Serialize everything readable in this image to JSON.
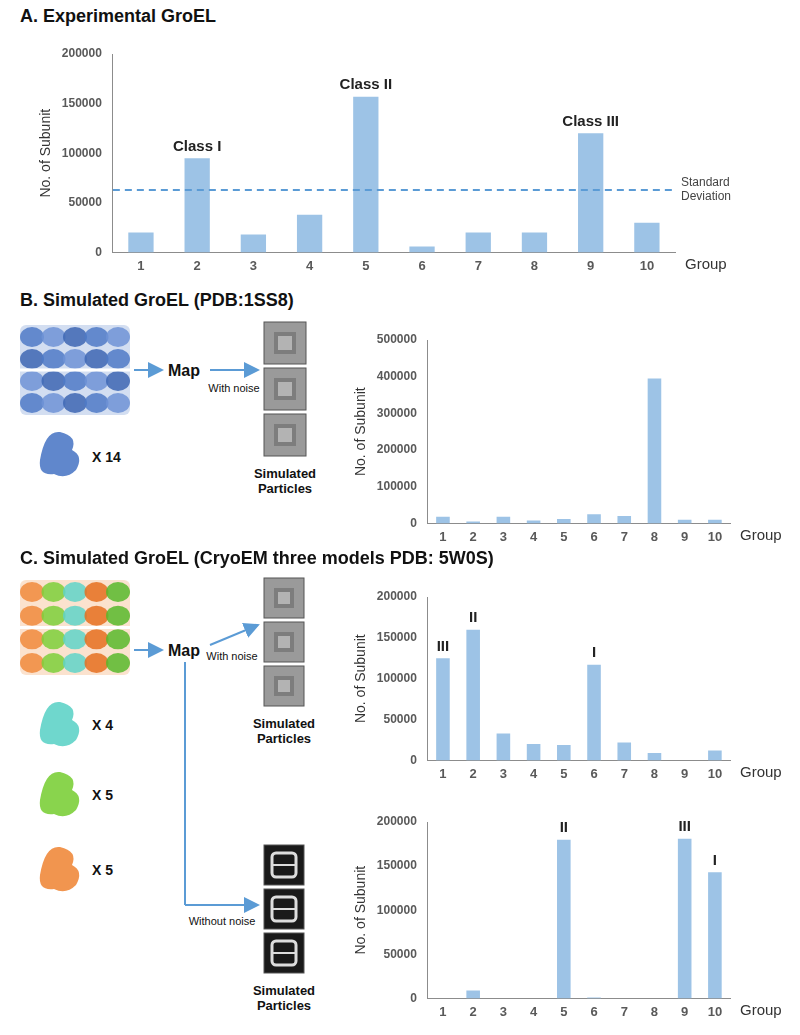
{
  "chart_data": [
    {
      "type": "bar",
      "title": "A. Experimental GroEL",
      "categories": [
        "1",
        "2",
        "3",
        "4",
        "5",
        "6",
        "7",
        "8",
        "9",
        "10"
      ],
      "values": [
        20000,
        95000,
        18000,
        38000,
        157000,
        6000,
        20000,
        20000,
        120000,
        30000
      ],
      "color": "#9dc3e6",
      "ylim": [
        0,
        200000
      ],
      "yticks": [
        0,
        50000,
        100000,
        150000,
        200000
      ],
      "grid": false,
      "y_label": "No. of Subunit",
      "x_label": "Group",
      "annotations": [
        {
          "category": "2",
          "text": "Class I"
        },
        {
          "category": "5",
          "text": "Class II"
        },
        {
          "category": "9",
          "text": "Class III"
        }
      ],
      "reference_lines": [
        {
          "value": 63000,
          "label": "Standard Deviation",
          "line_style": "dashed"
        }
      ]
    },
    {
      "type": "bar",
      "title": "B. Simulated GroEL (PDB:1SS8)",
      "categories": [
        "1",
        "2",
        "3",
        "4",
        "5",
        "6",
        "7",
        "8",
        "9",
        "10"
      ],
      "values": [
        18000,
        5000,
        18000,
        8000,
        12000,
        25000,
        20000,
        395000,
        10000,
        10000
      ],
      "color": "#9dc3e6",
      "ylim": [
        0,
        500000
      ],
      "yticks": [
        0,
        100000,
        200000,
        300000,
        400000,
        500000
      ],
      "grid": false,
      "y_label": "No. of Subunit",
      "x_label": "Group"
    },
    {
      "type": "bar",
      "title": "C. Simulated GroEL (CryoEM three models PDB: 5W0S)",
      "categories": [
        "1",
        "2",
        "3",
        "4",
        "5",
        "6",
        "7",
        "8",
        "9",
        "10"
      ],
      "values": [
        125000,
        160000,
        33000,
        20000,
        19000,
        117000,
        22000,
        9000,
        0,
        12000
      ],
      "color": "#9dc3e6",
      "ylim": [
        0,
        200000
      ],
      "yticks": [
        0,
        50000,
        100000,
        150000,
        200000
      ],
      "grid": false,
      "y_label": "No. of Subunit",
      "x_label": "Group",
      "annotations": [
        {
          "category": "1",
          "text": "III"
        },
        {
          "category": "2",
          "text": "II"
        },
        {
          "category": "6",
          "text": "I"
        }
      ]
    },
    {
      "type": "bar",
      "categories": [
        "1",
        "2",
        "3",
        "4",
        "5",
        "6",
        "7",
        "8",
        "9",
        "10"
      ],
      "values": [
        0,
        9000,
        0,
        0,
        180000,
        1000,
        0,
        0,
        181000,
        143000
      ],
      "color": "#9dc3e6",
      "ylim": [
        0,
        200000
      ],
      "yticks": [
        0,
        50000,
        100000,
        150000,
        200000
      ],
      "grid": false,
      "y_label": "No. of Subunit",
      "x_label": "Group",
      "annotations": [
        {
          "category": "5",
          "text": "II"
        },
        {
          "category": "9",
          "text": "III"
        },
        {
          "category": "10",
          "text": "I"
        }
      ]
    }
  ],
  "diagrams": {
    "B": {
      "multipliers": [
        "X 14"
      ],
      "map": "Map",
      "branches": [
        {
          "label": "With noise",
          "caption": "Simulated Particles"
        }
      ]
    },
    "C": {
      "multipliers": [
        "X 4",
        "X 5",
        "X 5"
      ],
      "map": "Map",
      "branches": [
        {
          "label": "With noise",
          "caption": "Simulated Particles"
        },
        {
          "label": "Without noise",
          "caption": "Simulated Particles"
        }
      ]
    }
  }
}
